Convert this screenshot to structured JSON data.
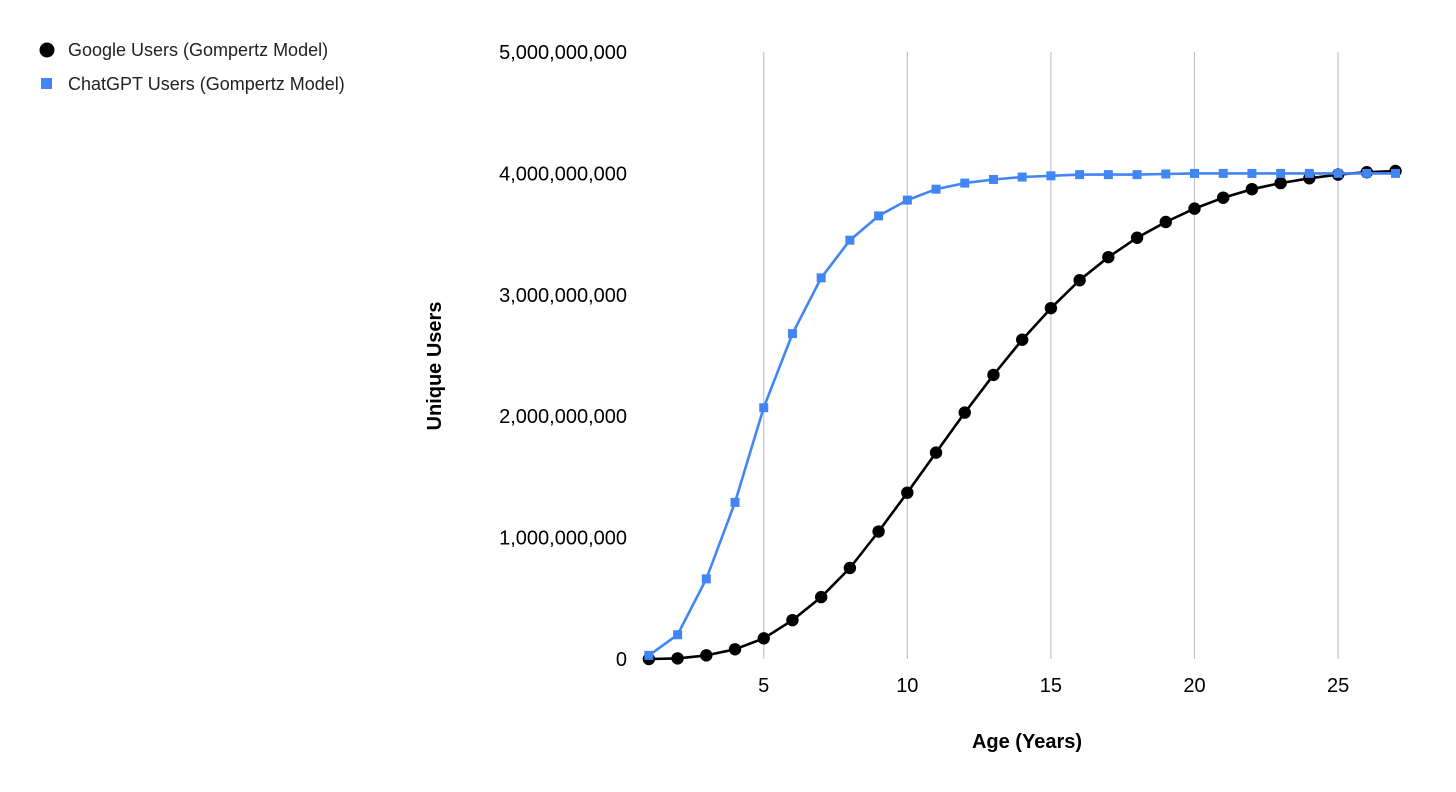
{
  "chart_data": {
    "type": "line",
    "title": "",
    "xlabel": "Age (Years)",
    "ylabel": "Unique Users",
    "xlim": [
      0.9,
      27.4
    ],
    "ylim": [
      0,
      5000000000
    ],
    "x_ticks": [
      5,
      10,
      15,
      20,
      25
    ],
    "y_ticks": [
      0,
      1000000000,
      2000000000,
      3000000000,
      4000000000,
      5000000000
    ],
    "x_tick_labels": [
      "5",
      "10",
      "15",
      "20",
      "25"
    ],
    "y_tick_labels": [
      "0",
      "1,000,000,000",
      "2,000,000,000",
      "3,000,000,000",
      "4,000,000,000",
      "5,000,000,000"
    ],
    "grid": "vertical",
    "legend_position": "top-left",
    "series": [
      {
        "name": "Google Users (Gompertz Model)",
        "marker": "circle",
        "color": "#000000",
        "x": [
          1,
          2,
          3,
          4,
          5,
          6,
          7,
          8,
          9,
          10,
          11,
          12,
          13,
          14,
          15,
          16,
          17,
          18,
          19,
          20,
          21,
          22,
          23,
          24,
          25,
          26,
          27
        ],
        "y": [
          0,
          5000000,
          30000000,
          80000000,
          170000000,
          320000000,
          510000000,
          750000000,
          1050000000,
          1370000000,
          1700000000,
          2030000000,
          2340000000,
          2630000000,
          2890000000,
          3120000000,
          3310000000,
          3470000000,
          3600000000,
          3710000000,
          3800000000,
          3870000000,
          3920000000,
          3960000000,
          3990000000,
          4010000000,
          4020000000
        ]
      },
      {
        "name": "ChatGPT Users (Gompertz Model)",
        "marker": "square",
        "color": "#4285F4",
        "x": [
          1,
          2,
          3,
          4,
          5,
          6,
          7,
          8,
          9,
          10,
          11,
          12,
          13,
          14,
          15,
          16,
          17,
          18,
          19,
          20,
          21,
          22,
          23,
          24,
          25,
          26,
          27
        ],
        "y": [
          30000000,
          200000000,
          660000000,
          1290000000,
          2070000000,
          2680000000,
          3140000000,
          3450000000,
          3650000000,
          3780000000,
          3870000000,
          3920000000,
          3950000000,
          3970000000,
          3980000000,
          3990000000,
          3990000000,
          3990000000,
          3995000000,
          4000000000,
          4000000000,
          4000000000,
          4000000000,
          4000000000,
          4000000000,
          4000000000,
          4000000000
        ]
      }
    ]
  }
}
